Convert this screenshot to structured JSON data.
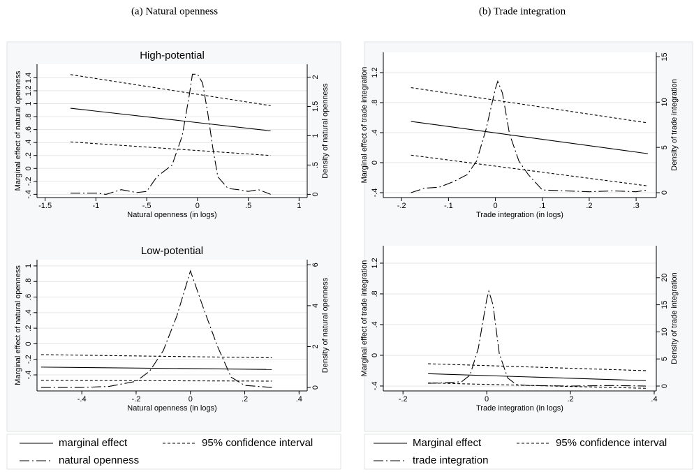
{
  "panel_titles": [
    "(a) Natural openness",
    "(b) Trade integration"
  ],
  "chart_data": [
    {
      "type": "line",
      "title": "High-potential",
      "x_label": "Natural openness (in logs)",
      "y_label": "Marginal effect of natural openness",
      "y2_label": "Density of natural openness",
      "xlim": [
        -1.58,
        1.08
      ],
      "xticks": [
        {
          "value": -1.5,
          "label": "-1.5"
        },
        {
          "value": -1,
          "label": "-1"
        },
        {
          "value": -0.5,
          "label": "-.5"
        },
        0,
        {
          "value": 0.5,
          "label": ".5"
        },
        1
      ],
      "ylim": [
        -0.45,
        1.61
      ],
      "yticks": [
        {
          "value": -0.4,
          "label": "-.4"
        },
        {
          "value": -0.2,
          "label": "-.2"
        },
        0,
        {
          "value": 0.2,
          "label": ".2"
        },
        {
          "value": 0.4,
          "label": ".4"
        },
        {
          "value": 0.6,
          "label": ".6"
        },
        {
          "value": 0.8,
          "label": ".8"
        },
        1,
        {
          "value": 1.2,
          "label": "1.2"
        },
        {
          "value": 1.4,
          "label": "1.4"
        }
      ],
      "y2lim": [
        -0.055,
        2.22
      ],
      "y2ticks": [
        0,
        {
          "value": 0.5,
          "label": ".5"
        },
        1,
        {
          "value": 1.5,
          "label": "1.5"
        },
        2
      ],
      "grid": true,
      "series": [
        {
          "color": "#000000",
          "dash": "solid",
          "x": [
            -1.25,
            0.72
          ],
          "values": [
            0.93,
            0.58
          ]
        },
        {
          "color": "#000000",
          "dash": "dashed",
          "x": [
            -1.25,
            0.72
          ],
          "values": [
            1.45,
            0.97
          ]
        },
        {
          "color": "#000000",
          "dash": "dashed",
          "x": [
            -1.25,
            0.72
          ],
          "values": [
            0.41,
            0.2
          ]
        },
        {
          "color": "#000000",
          "dash": "dashdot",
          "axis": "y2",
          "x": [
            -1.25,
            -1.0,
            -0.9,
            -0.75,
            -0.6,
            -0.5,
            -0.4,
            -0.25,
            -0.15,
            -0.08,
            -0.05,
            0.0,
            0.05,
            0.1,
            0.15,
            0.2,
            0.3,
            0.4,
            0.5,
            0.6,
            0.72
          ],
          "values": [
            0.02,
            0.02,
            0.0,
            0.08,
            0.03,
            0.05,
            0.3,
            0.5,
            1.0,
            1.7,
            2.05,
            2.05,
            1.9,
            1.4,
            0.8,
            0.3,
            0.1,
            0.08,
            0.05,
            0.08,
            0.0
          ]
        }
      ]
    },
    {
      "type": "line",
      "title": "Low-potential",
      "x_label": "Natural openness (in logs)",
      "y_label": "Marginal effect of natural openness",
      "y2_label": "Density of natural openness",
      "xlim": [
        -0.565,
        0.43
      ],
      "xticks": [
        {
          "value": -0.4,
          "label": "-.4"
        },
        {
          "value": -0.2,
          "label": "-.2"
        },
        0,
        {
          "value": 0.2,
          "label": ".2"
        },
        {
          "value": 0.4,
          "label": ".4"
        }
      ],
      "ylim": [
        -0.606,
        1.08
      ],
      "yticks": [
        {
          "value": -0.4,
          "label": "-.4"
        },
        {
          "value": -0.2,
          "label": "-.2"
        },
        0,
        {
          "value": 0.2,
          "label": ".2"
        },
        {
          "value": 0.4,
          "label": ".4"
        },
        {
          "value": 0.6,
          "label": ".6"
        },
        {
          "value": 0.8,
          "label": ".8"
        },
        1
      ],
      "y2lim": [
        -0.17,
        6.25
      ],
      "y2ticks": [
        0,
        2,
        4,
        6
      ],
      "grid": true,
      "series": [
        {
          "name": "marginal effect",
          "color": "#000000",
          "dash": "solid",
          "x": [
            -0.55,
            0.3
          ],
          "values": [
            -0.3,
            -0.33
          ]
        },
        {
          "name": "95% confidence interval",
          "color": "#000000",
          "dash": "dashed",
          "x": [
            -0.55,
            0.3
          ],
          "values": [
            -0.14,
            -0.18
          ]
        },
        {
          "color": "#000000",
          "dash": "dashed",
          "x": [
            -0.55,
            0.3
          ],
          "values": [
            -0.47,
            -0.48
          ]
        },
        {
          "name": "natural openness",
          "color": "#000000",
          "dash": "dashdot",
          "axis": "y2",
          "x": [
            -0.55,
            -0.4,
            -0.3,
            -0.2,
            -0.15,
            -0.1,
            -0.05,
            0,
            0.05,
            0.1,
            0.15,
            0.2,
            0.25,
            0.3
          ],
          "values": [
            0,
            0,
            0.05,
            0.3,
            0.8,
            1.8,
            3.5,
            5.7,
            3.8,
            2.0,
            0.5,
            0.1,
            0.05,
            0
          ]
        }
      ]
    },
    {
      "type": "line",
      "x_label": "Trade integration (in logs)",
      "y_label": "Marginal effect of trade integration",
      "y2_label": "Density of trade integration",
      "xlim": [
        -0.239,
        0.343
      ],
      "xticks": [
        {
          "value": -0.2,
          "label": "-.2"
        },
        {
          "value": -0.1,
          "label": "-.1"
        },
        0,
        {
          "value": 0.1,
          "label": ".1"
        },
        {
          "value": 0.2,
          "label": ".2"
        },
        {
          "value": 0.3,
          "label": ".3"
        }
      ],
      "ylim": [
        -0.465,
        1.47
      ],
      "yticks": [
        {
          "value": -0.4,
          "label": "-.4"
        },
        0,
        {
          "value": 0.4,
          "label": ".4"
        },
        {
          "value": 0.8,
          "label": ".8"
        },
        {
          "value": 1.2,
          "label": "1.2"
        }
      ],
      "y2lim": [
        -0.54,
        15.5
      ],
      "y2ticks": [
        0,
        5,
        10,
        15
      ],
      "grid": true,
      "series": [
        {
          "color": "#000000",
          "dash": "solid",
          "x": [
            -0.18,
            0.325
          ],
          "values": [
            0.55,
            0.12
          ]
        },
        {
          "color": "#000000",
          "dash": "dashed",
          "x": [
            -0.18,
            0.325
          ],
          "values": [
            1.0,
            0.53
          ]
        },
        {
          "color": "#000000",
          "dash": "dashed",
          "x": [
            -0.18,
            0.325
          ],
          "values": [
            0.1,
            -0.31
          ]
        },
        {
          "color": "#000000",
          "dash": "dashdot",
          "axis": "y2",
          "x": [
            -0.18,
            -0.15,
            -0.12,
            -0.09,
            -0.06,
            -0.04,
            -0.02,
            0.0,
            0.005,
            0.015,
            0.03,
            0.05,
            0.07,
            0.1,
            0.15,
            0.2,
            0.25,
            0.3,
            0.325
          ],
          "values": [
            0,
            0.5,
            0.6,
            1.2,
            2.0,
            3.5,
            7.0,
            11.5,
            12.3,
            11.0,
            6.5,
            3.5,
            2.0,
            0.3,
            0.2,
            0.1,
            0.2,
            0.1,
            0.3
          ]
        }
      ]
    },
    {
      "type": "line",
      "x_label": "Trade integration (in logs)",
      "y_label": "Marginal effect of trade integration",
      "y2_label": "Density of trade integration",
      "xlim": [
        -0.247,
        0.405
      ],
      "xticks": [
        {
          "value": -0.2,
          "label": "-.2"
        },
        0,
        {
          "value": 0.2,
          "label": ".2"
        },
        {
          "value": 0.4,
          "label": ".4"
        }
      ],
      "ylim": [
        -0.464,
        1.427
      ],
      "yticks": [
        {
          "value": -0.4,
          "label": "-.4"
        },
        0,
        {
          "value": 0.4,
          "label": ".4"
        },
        {
          "value": 0.8,
          "label": ".8"
        },
        {
          "value": 1.2,
          "label": "1.2"
        }
      ],
      "y2lim": [
        -0.9,
        25.9
      ],
      "y2ticks": [
        0,
        5,
        10,
        15,
        20
      ],
      "grid": true,
      "series": [
        {
          "name": "Marginal effect",
          "color": "#000000",
          "dash": "solid",
          "x": [
            -0.14,
            0.38
          ],
          "values": [
            -0.24,
            -0.33
          ]
        },
        {
          "name": "95% confidence interval",
          "color": "#000000",
          "dash": "dashed",
          "x": [
            -0.14,
            0.38
          ],
          "values": [
            -0.11,
            -0.2
          ]
        },
        {
          "color": "#000000",
          "dash": "dashed",
          "x": [
            -0.14,
            0.38
          ],
          "values": [
            -0.36,
            -0.43
          ]
        },
        {
          "name": "trade integration",
          "color": "#000000",
          "dash": "dashdot",
          "axis": "y2",
          "x": [
            -0.14,
            -0.1,
            -0.06,
            -0.04,
            -0.02,
            0,
            0.005,
            0.015,
            0.03,
            0.05,
            0.07,
            0.1,
            0.2,
            0.3,
            0.38
          ],
          "values": [
            0.5,
            0.6,
            0.8,
            2,
            7,
            16,
            17.5,
            15,
            6,
            1.5,
            0.3,
            0.1,
            0,
            0.1,
            0
          ]
        }
      ]
    }
  ]
}
